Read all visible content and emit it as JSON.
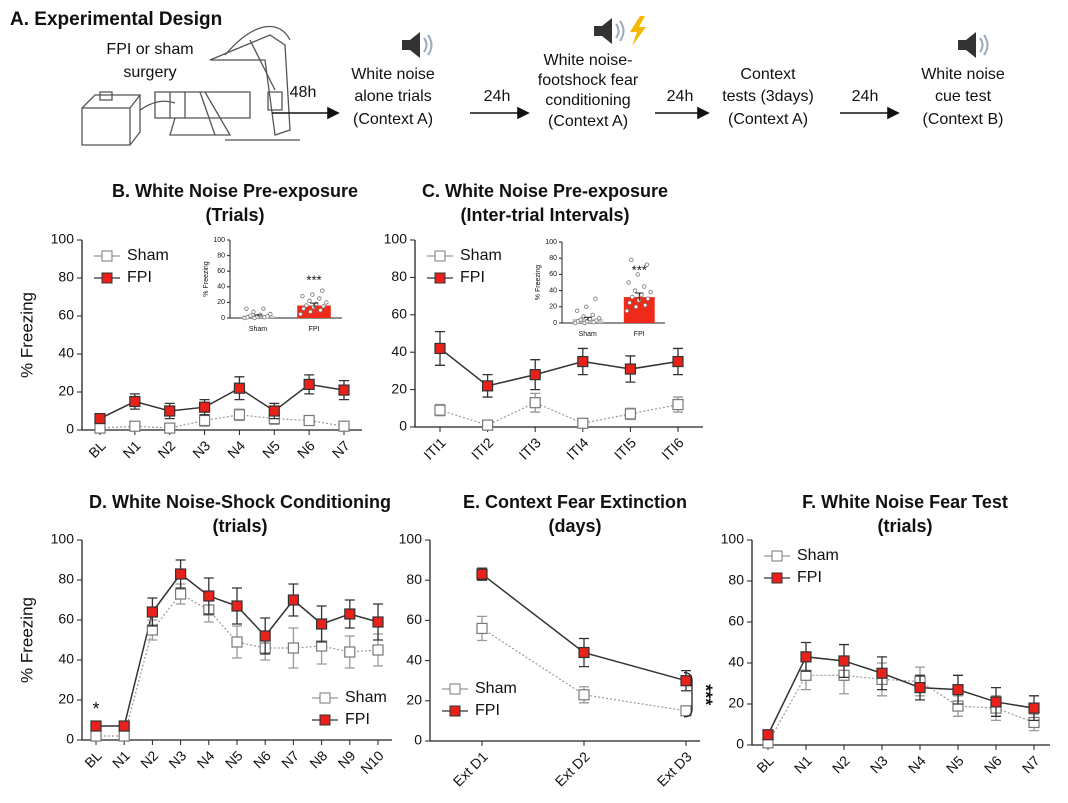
{
  "design": {
    "title": "A. Experimental Design",
    "steps": [
      {
        "lines": [
          "FPI or sham",
          "surgery"
        ]
      },
      {
        "lines": [
          "White noise",
          "alone trials",
          "(Context A)"
        ]
      },
      {
        "lines": [
          "White noise-",
          "footshock fear",
          "conditioning",
          "(Context A)"
        ]
      },
      {
        "lines": [
          "Context",
          "tests (3days)",
          "(Context A)"
        ]
      },
      {
        "lines": [
          "White noise",
          "cue test",
          "(Context B)"
        ]
      }
    ],
    "intervals": [
      "48h",
      "24h",
      "24h",
      "24h"
    ]
  },
  "chart_data": [
    {
      "type": "line",
      "title": [
        "B. White Noise Pre-exposure",
        "(Trials)"
      ],
      "ylabel": "% Freezing",
      "categories": [
        "BL",
        "N1",
        "N2",
        "N3",
        "N4",
        "N5",
        "N6",
        "N7"
      ],
      "series": [
        {
          "name": "Sham",
          "color": "#ffffff",
          "line_color": "#999999",
          "values": [
            1,
            2,
            1,
            5,
            8,
            6,
            5,
            2
          ],
          "errors": [
            1,
            2,
            1,
            3,
            3,
            3,
            2,
            1
          ]
        },
        {
          "name": "FPI",
          "color": "#e8221a",
          "line_color": "#333333",
          "values": [
            6,
            15,
            10,
            12,
            22,
            10,
            24,
            21
          ],
          "errors": [
            1,
            4,
            4,
            4,
            6,
            4,
            5,
            5
          ]
        }
      ],
      "ylim": [
        0,
        100
      ],
      "yticks": [
        0,
        20,
        40,
        60,
        80,
        100
      ],
      "legend": "upper left",
      "inset": {
        "type": "bar",
        "ylabel": "% Freezing",
        "categories": [
          "Sham",
          "FPI"
        ],
        "values": [
          3,
          16
        ],
        "errors": [
          1,
          3
        ],
        "colors": [
          "#cccccc",
          "#ee2a1b"
        ],
        "points": [
          [
            0,
            0,
            1,
            1,
            2,
            2,
            3,
            4,
            5,
            8,
            12,
            12
          ],
          [
            5,
            8,
            10,
            12,
            14,
            15,
            16,
            18,
            20,
            22,
            25,
            28,
            30,
            35
          ]
        ],
        "ylim": [
          0,
          100
        ],
        "yticks": [
          0,
          20,
          40,
          60,
          80,
          100
        ],
        "annotation": "***"
      }
    },
    {
      "type": "line",
      "title": [
        "C. White Noise Pre-exposure",
        "(Inter-trial Intervals)"
      ],
      "categories": [
        "ITI1",
        "ITI2",
        "ITI3",
        "ITI4",
        "ITI5",
        "ITI6"
      ],
      "series": [
        {
          "name": "Sham",
          "color": "#ffffff",
          "line_color": "#999999",
          "values": [
            9,
            1,
            13,
            2,
            7,
            12
          ],
          "errors": [
            3,
            1,
            5,
            1,
            3,
            4
          ]
        },
        {
          "name": "FPI",
          "color": "#e8221a",
          "line_color": "#333333",
          "values": [
            42,
            22,
            28,
            35,
            31,
            35
          ],
          "errors": [
            9,
            6,
            8,
            7,
            7,
            7
          ]
        }
      ],
      "ylim": [
        0,
        100
      ],
      "yticks": [
        0,
        20,
        40,
        60,
        80,
        100
      ],
      "legend": "upper left",
      "inset": {
        "type": "bar",
        "ylabel": "% Freezing",
        "categories": [
          "Sham",
          "FPI"
        ],
        "values": [
          5,
          32
        ],
        "errors": [
          2,
          5
        ],
        "colors": [
          "#cccccc",
          "#ee2a1b"
        ],
        "points": [
          [
            0,
            0,
            1,
            2,
            2,
            3,
            4,
            5,
            6,
            8,
            10,
            15,
            20,
            30
          ],
          [
            15,
            20,
            22,
            25,
            28,
            30,
            32,
            35,
            38,
            40,
            45,
            50,
            60,
            72,
            78
          ]
        ],
        "ylim": [
          0,
          100
        ],
        "yticks": [
          0,
          20,
          40,
          60,
          80,
          100
        ],
        "annotation": "***"
      }
    },
    {
      "type": "line",
      "title": [
        "D. White Noise-Shock Conditioning",
        "(trials)"
      ],
      "ylabel": "% Freezing",
      "categories": [
        "BL",
        "N1",
        "N2",
        "N3",
        "N4",
        "N5",
        "N6",
        "N7",
        "N8",
        "N9",
        "N10"
      ],
      "series": [
        {
          "name": "Sham",
          "color": "#ffffff",
          "line_color": "#999999",
          "values": [
            2,
            2,
            55,
            73,
            65,
            49,
            46,
            46,
            47,
            44,
            45
          ],
          "errors": [
            1,
            1,
            5,
            5,
            6,
            8,
            6,
            10,
            9,
            8,
            8
          ]
        },
        {
          "name": "FPI",
          "color": "#e8221a",
          "line_color": "#333333",
          "values": [
            7,
            7,
            64,
            83,
            72,
            67,
            52,
            70,
            58,
            63,
            59
          ],
          "errors": [
            1,
            2,
            7,
            7,
            9,
            9,
            9,
            8,
            9,
            7,
            9
          ]
        }
      ],
      "ylim": [
        0,
        100
      ],
      "yticks": [
        0,
        20,
        40,
        60,
        80,
        100
      ],
      "legend": "lower right",
      "annotation": "*"
    },
    {
      "type": "line",
      "title": [
        "E. Context Fear Extinction",
        "(days)"
      ],
      "categories": [
        "Ext D1",
        "Ext D2",
        "Ext D3"
      ],
      "series": [
        {
          "name": "Sham",
          "color": "#ffffff",
          "line_color": "#999999",
          "values": [
            56,
            23,
            15
          ],
          "errors": [
            6,
            4,
            2
          ]
        },
        {
          "name": "FPI",
          "color": "#e8221a",
          "line_color": "#333333",
          "values": [
            83,
            44,
            30
          ],
          "errors": [
            3,
            7,
            5
          ]
        }
      ],
      "ylim": [
        0,
        100
      ],
      "yticks": [
        0,
        20,
        40,
        60,
        80,
        100
      ],
      "legend": "lower left",
      "annotation": "***"
    },
    {
      "type": "line",
      "title": [
        "F. White Noise Fear Test",
        "(trials)"
      ],
      "categories": [
        "BL",
        "N1",
        "N2",
        "N3",
        "N4",
        "N5",
        "N6",
        "N7"
      ],
      "series": [
        {
          "name": "Sham",
          "color": "#ffffff",
          "line_color": "#999999",
          "values": [
            1,
            34,
            34,
            32,
            31,
            19,
            18,
            11
          ],
          "errors": [
            1,
            7,
            9,
            8,
            7,
            5,
            6,
            4
          ]
        },
        {
          "name": "FPI",
          "color": "#e8221a",
          "line_color": "#333333",
          "values": [
            5,
            43,
            41,
            35,
            28,
            27,
            21,
            18
          ],
          "errors": [
            1,
            7,
            8,
            8,
            6,
            7,
            7,
            6
          ]
        }
      ],
      "ylim": [
        0,
        100
      ],
      "yticks": [
        0,
        20,
        40,
        60,
        80,
        100
      ],
      "legend": "upper left"
    }
  ]
}
